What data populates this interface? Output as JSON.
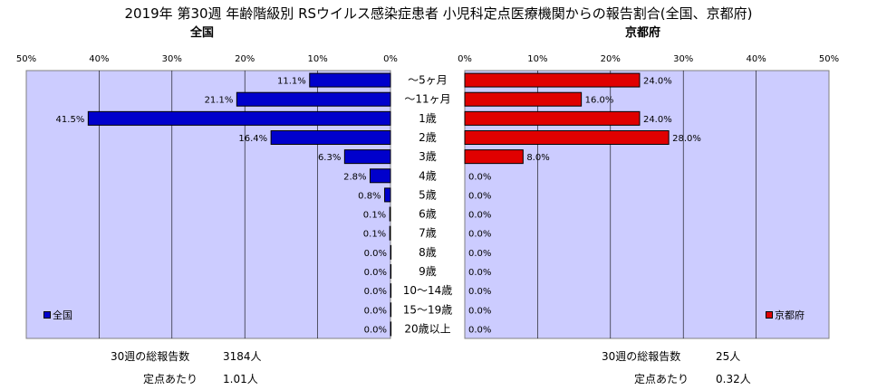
{
  "title": "2019年 第30週 年齢階級別 RSウイルス感染症患者 小児科定点医療機関からの報告割合(全国、京都府)",
  "colors": {
    "national": "#0000cc",
    "kyoto": "#e00000",
    "plot_bg": "#ccccff"
  },
  "chart_data": {
    "type": "bar",
    "orientation": "horizontal",
    "categories": [
      "～5ヶ月",
      "～11ヶ月",
      "1歳",
      "2歳",
      "3歳",
      "4歳",
      "5歳",
      "6歳",
      "7歳",
      "8歳",
      "9歳",
      "10～14歳",
      "15～19歳",
      "20歳以上"
    ],
    "xlim": [
      0,
      50
    ],
    "x_ticks": [
      "50%",
      "40%",
      "30%",
      "20%",
      "10%",
      "0%"
    ],
    "x_ticks_right": [
      "0%",
      "10%",
      "20%",
      "30%",
      "40%",
      "50%"
    ],
    "series": [
      {
        "name": "全国",
        "subtitle": "全国",
        "legend": "全国",
        "values": [
          11.1,
          21.1,
          41.5,
          16.4,
          6.3,
          2.8,
          0.8,
          0.1,
          0.1,
          0.0,
          0.0,
          0.0,
          0.0,
          0.0
        ],
        "labels": [
          "11.1%",
          "21.1%",
          "41.5%",
          "16.4%",
          "6.3%",
          "2.8%",
          "0.8%",
          "0.1%",
          "0.1%",
          "0.0%",
          "0.0%",
          "0.0%",
          "0.0%",
          "0.0%"
        ]
      },
      {
        "name": "京都府",
        "subtitle": "京都府",
        "legend": "京都府",
        "values": [
          24.0,
          16.0,
          24.0,
          28.0,
          8.0,
          0.0,
          0.0,
          0.0,
          0.0,
          0.0,
          0.0,
          0.0,
          0.0,
          0.0
        ],
        "labels": [
          "24.0%",
          "16.0%",
          "24.0%",
          "28.0%",
          "8.0%",
          "0.0%",
          "0.0%",
          "0.0%",
          "0.0%",
          "0.0%",
          "0.0%",
          "0.0%",
          "0.0%",
          "0.0%"
        ]
      }
    ],
    "grid": true,
    "legend_position": "bottom-left / bottom-right"
  },
  "footer": {
    "national": {
      "total_label": "30週の総報告数",
      "total_value": "3184人",
      "per_label": "定点あたり",
      "per_value": "1.01人"
    },
    "kyoto": {
      "total_label": "30週の総報告数",
      "total_value": "25人",
      "per_label": "定点あたり",
      "per_value": "0.32人"
    }
  }
}
